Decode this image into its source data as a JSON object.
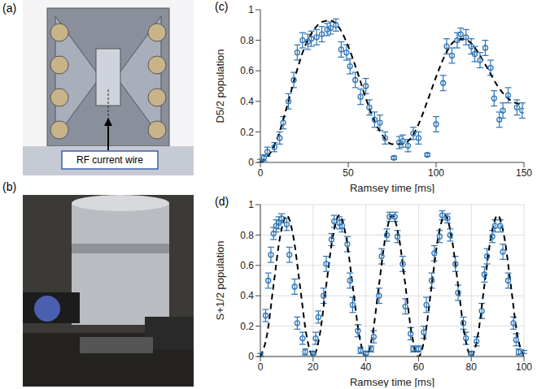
{
  "panels": [
    {
      "label": "(a)",
      "annotation": "RF current wire"
    },
    {
      "label": "(b)"
    }
  ],
  "chart_data": [
    {
      "type": "scatter",
      "panel": "(c)",
      "x_label": "Ramsey time [ms]",
      "y_label": "D5/2 population",
      "xlim": [
        0,
        150
      ],
      "xticks": [
        0,
        50,
        100,
        150
      ],
      "ylim": [
        0,
        1
      ],
      "yticks": [
        0,
        0.2,
        0.4,
        0.6,
        0.8,
        1
      ],
      "grid": false,
      "series": [
        {
          "type": "scatter",
          "color": "#2e75b6",
          "marker": "open_circle",
          "x": [
            0,
            2,
            4,
            8,
            11,
            13,
            16,
            19,
            21,
            24,
            27,
            29,
            32,
            35,
            38,
            40,
            43,
            46,
            49,
            51,
            54,
            57,
            60,
            62,
            65,
            68,
            71,
            76,
            79,
            81,
            84,
            87,
            90,
            95,
            100,
            104,
            106,
            109,
            112,
            114,
            117,
            120,
            122,
            125,
            128,
            131,
            133,
            136,
            138,
            141,
            146,
            149
          ],
          "values": [
            0.01,
            0.03,
            0.07,
            0.1,
            0.16,
            0.26,
            0.4,
            0.54,
            0.72,
            0.8,
            0.79,
            0.81,
            0.82,
            0.84,
            0.87,
            0.88,
            0.9,
            0.74,
            0.72,
            0.63,
            0.54,
            0.43,
            0.5,
            0.36,
            0.28,
            0.26,
            0.16,
            0.03,
            0.13,
            0.14,
            0.11,
            0.19,
            0.16,
            0.05,
            0.25,
            0.52,
            0.76,
            0.7,
            0.8,
            0.84,
            0.82,
            0.76,
            0.71,
            0.67,
            0.75,
            0.62,
            0.42,
            0.28,
            0.34,
            0.44,
            0.36,
            0.34
          ],
          "error": [
            0.01,
            0.02,
            0.03,
            0.03,
            0.04,
            0.04,
            0.05,
            0.05,
            0.05,
            0.05,
            0.05,
            0.05,
            0.05,
            0.05,
            0.04,
            0.04,
            0.04,
            0.05,
            0.05,
            0.05,
            0.05,
            0.05,
            0.05,
            0.05,
            0.05,
            0.05,
            0.04,
            0.01,
            0.04,
            0.04,
            0.04,
            0.04,
            0.04,
            0.01,
            0.05,
            0.05,
            0.05,
            0.05,
            0.05,
            0.04,
            0.05,
            0.05,
            0.05,
            0.05,
            0.05,
            0.05,
            0.05,
            0.05,
            0.05,
            0.05,
            0.05,
            0.05
          ]
        },
        {
          "type": "line",
          "color": "#000000",
          "line_style": "dashed",
          "x": [
            0,
            5,
            10,
            15,
            20,
            25,
            30,
            35,
            40,
            45,
            50,
            55,
            60,
            65,
            70,
            75,
            80,
            85,
            90,
            95,
            100,
            105,
            110,
            115,
            120,
            125,
            130,
            135,
            140,
            145,
            150
          ],
          "values": [
            0,
            0.05,
            0.17,
            0.36,
            0.57,
            0.75,
            0.86,
            0.92,
            0.93,
            0.88,
            0.76,
            0.6,
            0.42,
            0.27,
            0.17,
            0.12,
            0.12,
            0.15,
            0.25,
            0.4,
            0.56,
            0.7,
            0.79,
            0.81,
            0.78,
            0.7,
            0.6,
            0.5,
            0.43,
            0.39,
            0.38
          ]
        }
      ]
    },
    {
      "type": "scatter",
      "panel": "(d)",
      "x_label": "Ramsey time [ms]",
      "y_label": "S+1/2 population",
      "xlim": [
        0,
        100
      ],
      "xticks": [
        0,
        20,
        40,
        60,
        80,
        100
      ],
      "ylim": [
        0,
        1
      ],
      "yticks": [
        0,
        0.2,
        0.4,
        0.6,
        0.8,
        1
      ],
      "grid": true,
      "series": [
        {
          "type": "scatter",
          "color": "#2e75b6",
          "marker": "open_circle",
          "x": [
            0,
            2,
            3,
            4,
            5,
            6,
            7,
            8,
            10,
            11,
            13,
            14,
            16,
            17,
            20,
            21,
            22,
            24,
            25,
            27,
            28,
            30,
            31,
            33,
            34,
            35,
            37,
            38,
            40,
            42,
            43,
            45,
            46,
            48,
            49,
            51,
            52,
            54,
            55,
            57,
            58,
            60,
            62,
            63,
            65,
            66,
            68,
            69,
            71,
            72,
            74,
            75,
            77,
            78,
            80,
            82,
            84,
            85,
            86,
            88,
            89,
            91,
            92,
            94,
            96,
            97,
            98,
            100
          ],
          "values": [
            0.01,
            0.27,
            0.5,
            0.67,
            0.81,
            0.86,
            0.88,
            0.91,
            0.87,
            0.67,
            0.46,
            0.22,
            0.12,
            0.03,
            0.02,
            0.12,
            0.26,
            0.4,
            0.61,
            0.77,
            0.89,
            0.88,
            0.86,
            0.74,
            0.5,
            0.34,
            0.17,
            0.04,
            0.02,
            0.05,
            0.13,
            0.4,
            0.66,
            0.8,
            0.92,
            0.92,
            0.79,
            0.61,
            0.33,
            0.15,
            0.05,
            0.05,
            0.16,
            0.34,
            0.5,
            0.68,
            0.79,
            0.93,
            0.91,
            0.8,
            0.61,
            0.42,
            0.22,
            0.12,
            0.02,
            0.1,
            0.3,
            0.54,
            0.66,
            0.79,
            0.86,
            0.86,
            0.69,
            0.5,
            0.22,
            0.11,
            0.03,
            0.03
          ],
          "error": [
            0.01,
            0.04,
            0.05,
            0.05,
            0.04,
            0.04,
            0.04,
            0.03,
            0.04,
            0.05,
            0.05,
            0.04,
            0.04,
            0.02,
            0.01,
            0.04,
            0.04,
            0.05,
            0.05,
            0.04,
            0.04,
            0.04,
            0.04,
            0.05,
            0.05,
            0.05,
            0.04,
            0.02,
            0.01,
            0.02,
            0.04,
            0.05,
            0.05,
            0.04,
            0.03,
            0.03,
            0.04,
            0.05,
            0.05,
            0.04,
            0.02,
            0.02,
            0.04,
            0.05,
            0.05,
            0.05,
            0.04,
            0.03,
            0.03,
            0.04,
            0.05,
            0.05,
            0.04,
            0.04,
            0.01,
            0.03,
            0.05,
            0.05,
            0.05,
            0.04,
            0.04,
            0.04,
            0.05,
            0.05,
            0.04,
            0.04,
            0.02,
            0.01
          ]
        },
        {
          "type": "line",
          "color": "#000000",
          "line_style": "dashed",
          "x": [
            0,
            2.5,
            5,
            7.5,
            10,
            12.5,
            15,
            17.5,
            20,
            22.5,
            25,
            27.5,
            30,
            32.5,
            35,
            37.5,
            40,
            42.5,
            45,
            47.5,
            50,
            52.5,
            55,
            57.5,
            60,
            62.5,
            65,
            67.5,
            70,
            72.5,
            75,
            77.5,
            80,
            82.5,
            85,
            87.5,
            90,
            92.5,
            95,
            97.5,
            100
          ],
          "values": [
            0,
            0.14,
            0.47,
            0.79,
            0.93,
            0.79,
            0.47,
            0.14,
            0,
            0.14,
            0.47,
            0.79,
            0.93,
            0.79,
            0.47,
            0.14,
            0,
            0.14,
            0.47,
            0.79,
            0.93,
            0.79,
            0.47,
            0.14,
            0,
            0.14,
            0.47,
            0.79,
            0.93,
            0.79,
            0.47,
            0.14,
            0,
            0.14,
            0.47,
            0.79,
            0.93,
            0.79,
            0.47,
            0.14,
            0
          ]
        }
      ]
    }
  ]
}
